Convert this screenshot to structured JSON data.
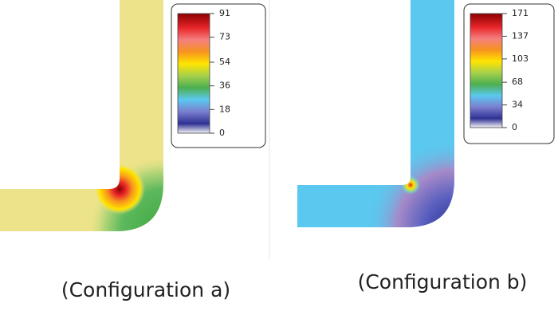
{
  "panels": [
    {
      "caption": "(Configuration a)",
      "colorbar_ticks": [
        0,
        18,
        36,
        54,
        73,
        91
      ]
    },
    {
      "caption": "(Configuration b)",
      "colorbar_ticks": [
        0,
        34,
        68,
        103,
        137,
        171
      ]
    }
  ]
}
